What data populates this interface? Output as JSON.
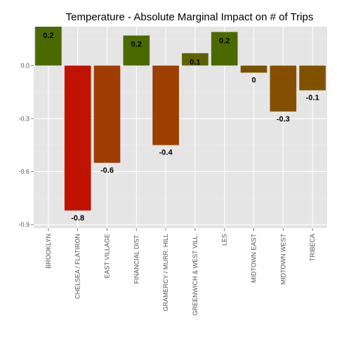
{
  "chart_data": {
    "type": "bar",
    "title": "Temperature - Absolute Marginal Impact on # of Trips",
    "xlabel": "",
    "ylabel": "",
    "categories": [
      "BROOKLYN",
      "CHELSEA / FLATIRON",
      "EAST VILLAGE",
      "FINANCIAL DIST.",
      "GRAMERCY / MURR. HILL",
      "GREENWICH & WEST VILL.",
      "LES",
      "MIDTOWN EAST",
      "MIDTOWN WEST",
      "TRIBECA"
    ],
    "values": [
      0.22,
      -0.82,
      -0.55,
      0.17,
      -0.45,
      0.07,
      0.19,
      -0.04,
      -0.26,
      -0.14
    ],
    "data_labels": [
      "0.2",
      "-0.8",
      "-0.6",
      "0.2",
      "-0.4",
      "0.1",
      "0.2",
      "0",
      "-0.3",
      "-0.1"
    ],
    "ylim": [
      -0.92,
      0.22
    ],
    "yticks": [
      0.0,
      -0.3,
      -0.6,
      -0.9
    ],
    "ytick_labels": [
      "0.0",
      "-0.3",
      "-0.6",
      "-0.9"
    ],
    "grid": true,
    "legend": "none",
    "colors": [
      "#4a6a00",
      "#c01200",
      "#a03c00",
      "#4a6a00",
      "#9c3f00",
      "#5e6300",
      "#4a6a00",
      "#7a5200",
      "#845000",
      "#805200"
    ],
    "panel_background": "#e5e5e5"
  }
}
